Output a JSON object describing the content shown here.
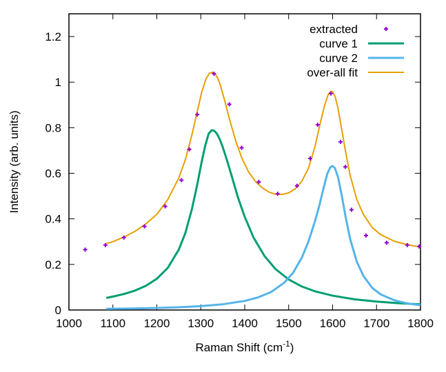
{
  "chart_data": {
    "type": "scatter",
    "xlabel": "Raman Shift (cm",
    "xlabel_sup": "-1",
    "xlabel_end": ")",
    "ylabel": "Intensity (arb. units)",
    "xlim": [
      1000,
      1800
    ],
    "ylim": [
      0,
      1.3
    ],
    "xticks": [
      1000,
      1100,
      1200,
      1300,
      1400,
      1500,
      1600,
      1700,
      1800
    ],
    "xtick_labels": [
      "1000",
      "1100",
      "1200",
      "1300",
      "1400",
      "1500",
      "1600",
      "1700",
      "1800"
    ],
    "yticks": [
      0,
      0.2,
      0.4,
      0.6,
      0.8,
      1.0,
      1.2
    ],
    "ytick_labels": [
      "0",
      "0.2",
      "0.4",
      "0.6",
      "0.8",
      "1",
      "1.2"
    ],
    "grid": false,
    "legend_position": "top-right",
    "series": [
      {
        "name": "extracted",
        "kind": "points",
        "color": "#9400d3",
        "x": [
          1037,
          1083,
          1125,
          1172,
          1219,
          1256,
          1274,
          1292,
          1330,
          1365,
          1393,
          1432,
          1475,
          1519,
          1549,
          1566,
          1596,
          1618,
          1629,
          1643,
          1676,
          1723,
          1770,
          1797
        ],
        "y": [
          0.265,
          0.285,
          0.318,
          0.367,
          0.455,
          0.57,
          0.705,
          0.858,
          1.037,
          0.903,
          0.712,
          0.562,
          0.51,
          0.545,
          0.665,
          0.813,
          0.95,
          0.738,
          0.628,
          0.44,
          0.327,
          0.295,
          0.285,
          0.279
        ]
      },
      {
        "name": "curve 1",
        "kind": "line",
        "color": "#009e73",
        "x": [
          1085,
          1100,
          1125,
          1150,
          1175,
          1200,
          1225,
          1250,
          1265,
          1280,
          1292,
          1302,
          1310,
          1318,
          1325,
          1330,
          1336,
          1343,
          1350,
          1360,
          1370,
          1385,
          1400,
          1420,
          1445,
          1470,
          1500,
          1530,
          1560,
          1600,
          1650,
          1700,
          1750,
          1800
        ],
        "y": [
          0.053,
          0.059,
          0.07,
          0.085,
          0.106,
          0.137,
          0.185,
          0.265,
          0.338,
          0.444,
          0.55,
          0.649,
          0.72,
          0.774,
          0.789,
          0.787,
          0.776,
          0.75,
          0.715,
          0.655,
          0.59,
          0.492,
          0.409,
          0.318,
          0.237,
          0.18,
          0.134,
          0.103,
          0.082,
          0.063,
          0.047,
          0.037,
          0.03,
          0.025
        ]
      },
      {
        "name": "curve 2",
        "kind": "line",
        "color": "#56b4e9",
        "x": [
          1085,
          1150,
          1200,
          1250,
          1300,
          1350,
          1400,
          1430,
          1460,
          1490,
          1510,
          1530,
          1545,
          1560,
          1570,
          1580,
          1588,
          1595,
          1600,
          1605,
          1612,
          1620,
          1630,
          1640,
          1655,
          1670,
          1690,
          1710,
          1740,
          1770,
          1800
        ],
        "y": [
          0.005,
          0.007,
          0.009,
          0.012,
          0.017,
          0.025,
          0.04,
          0.055,
          0.079,
          0.12,
          0.163,
          0.23,
          0.3,
          0.39,
          0.46,
          0.54,
          0.598,
          0.627,
          0.632,
          0.623,
          0.585,
          0.51,
          0.405,
          0.311,
          0.212,
          0.15,
          0.097,
          0.068,
          0.043,
          0.029,
          0.021
        ]
      },
      {
        "name": "over-all fit",
        "kind": "line",
        "color": "#e69f00",
        "x": [
          1085,
          1100,
          1125,
          1150,
          1175,
          1200,
          1225,
          1250,
          1265,
          1280,
          1292,
          1302,
          1312,
          1320,
          1327,
          1332,
          1338,
          1345,
          1355,
          1365,
          1380,
          1395,
          1410,
          1425,
          1440,
          1455,
          1470,
          1485,
          1500,
          1515,
          1530,
          1545,
          1560,
          1572,
          1582,
          1590,
          1596,
          1600,
          1606,
          1612,
          1620,
          1630,
          1640,
          1655,
          1670,
          1690,
          1710,
          1740,
          1770,
          1800
        ],
        "y": [
          0.291,
          0.3,
          0.32,
          0.345,
          0.378,
          0.42,
          0.485,
          0.58,
          0.66,
          0.77,
          0.87,
          0.955,
          1.015,
          1.04,
          1.043,
          1.037,
          1.02,
          0.985,
          0.915,
          0.84,
          0.738,
          0.66,
          0.602,
          0.563,
          0.536,
          0.518,
          0.508,
          0.507,
          0.514,
          0.532,
          0.565,
          0.622,
          0.718,
          0.82,
          0.9,
          0.945,
          0.96,
          0.957,
          0.935,
          0.888,
          0.8,
          0.69,
          0.59,
          0.485,
          0.42,
          0.362,
          0.33,
          0.302,
          0.287,
          0.276
        ]
      }
    ]
  }
}
